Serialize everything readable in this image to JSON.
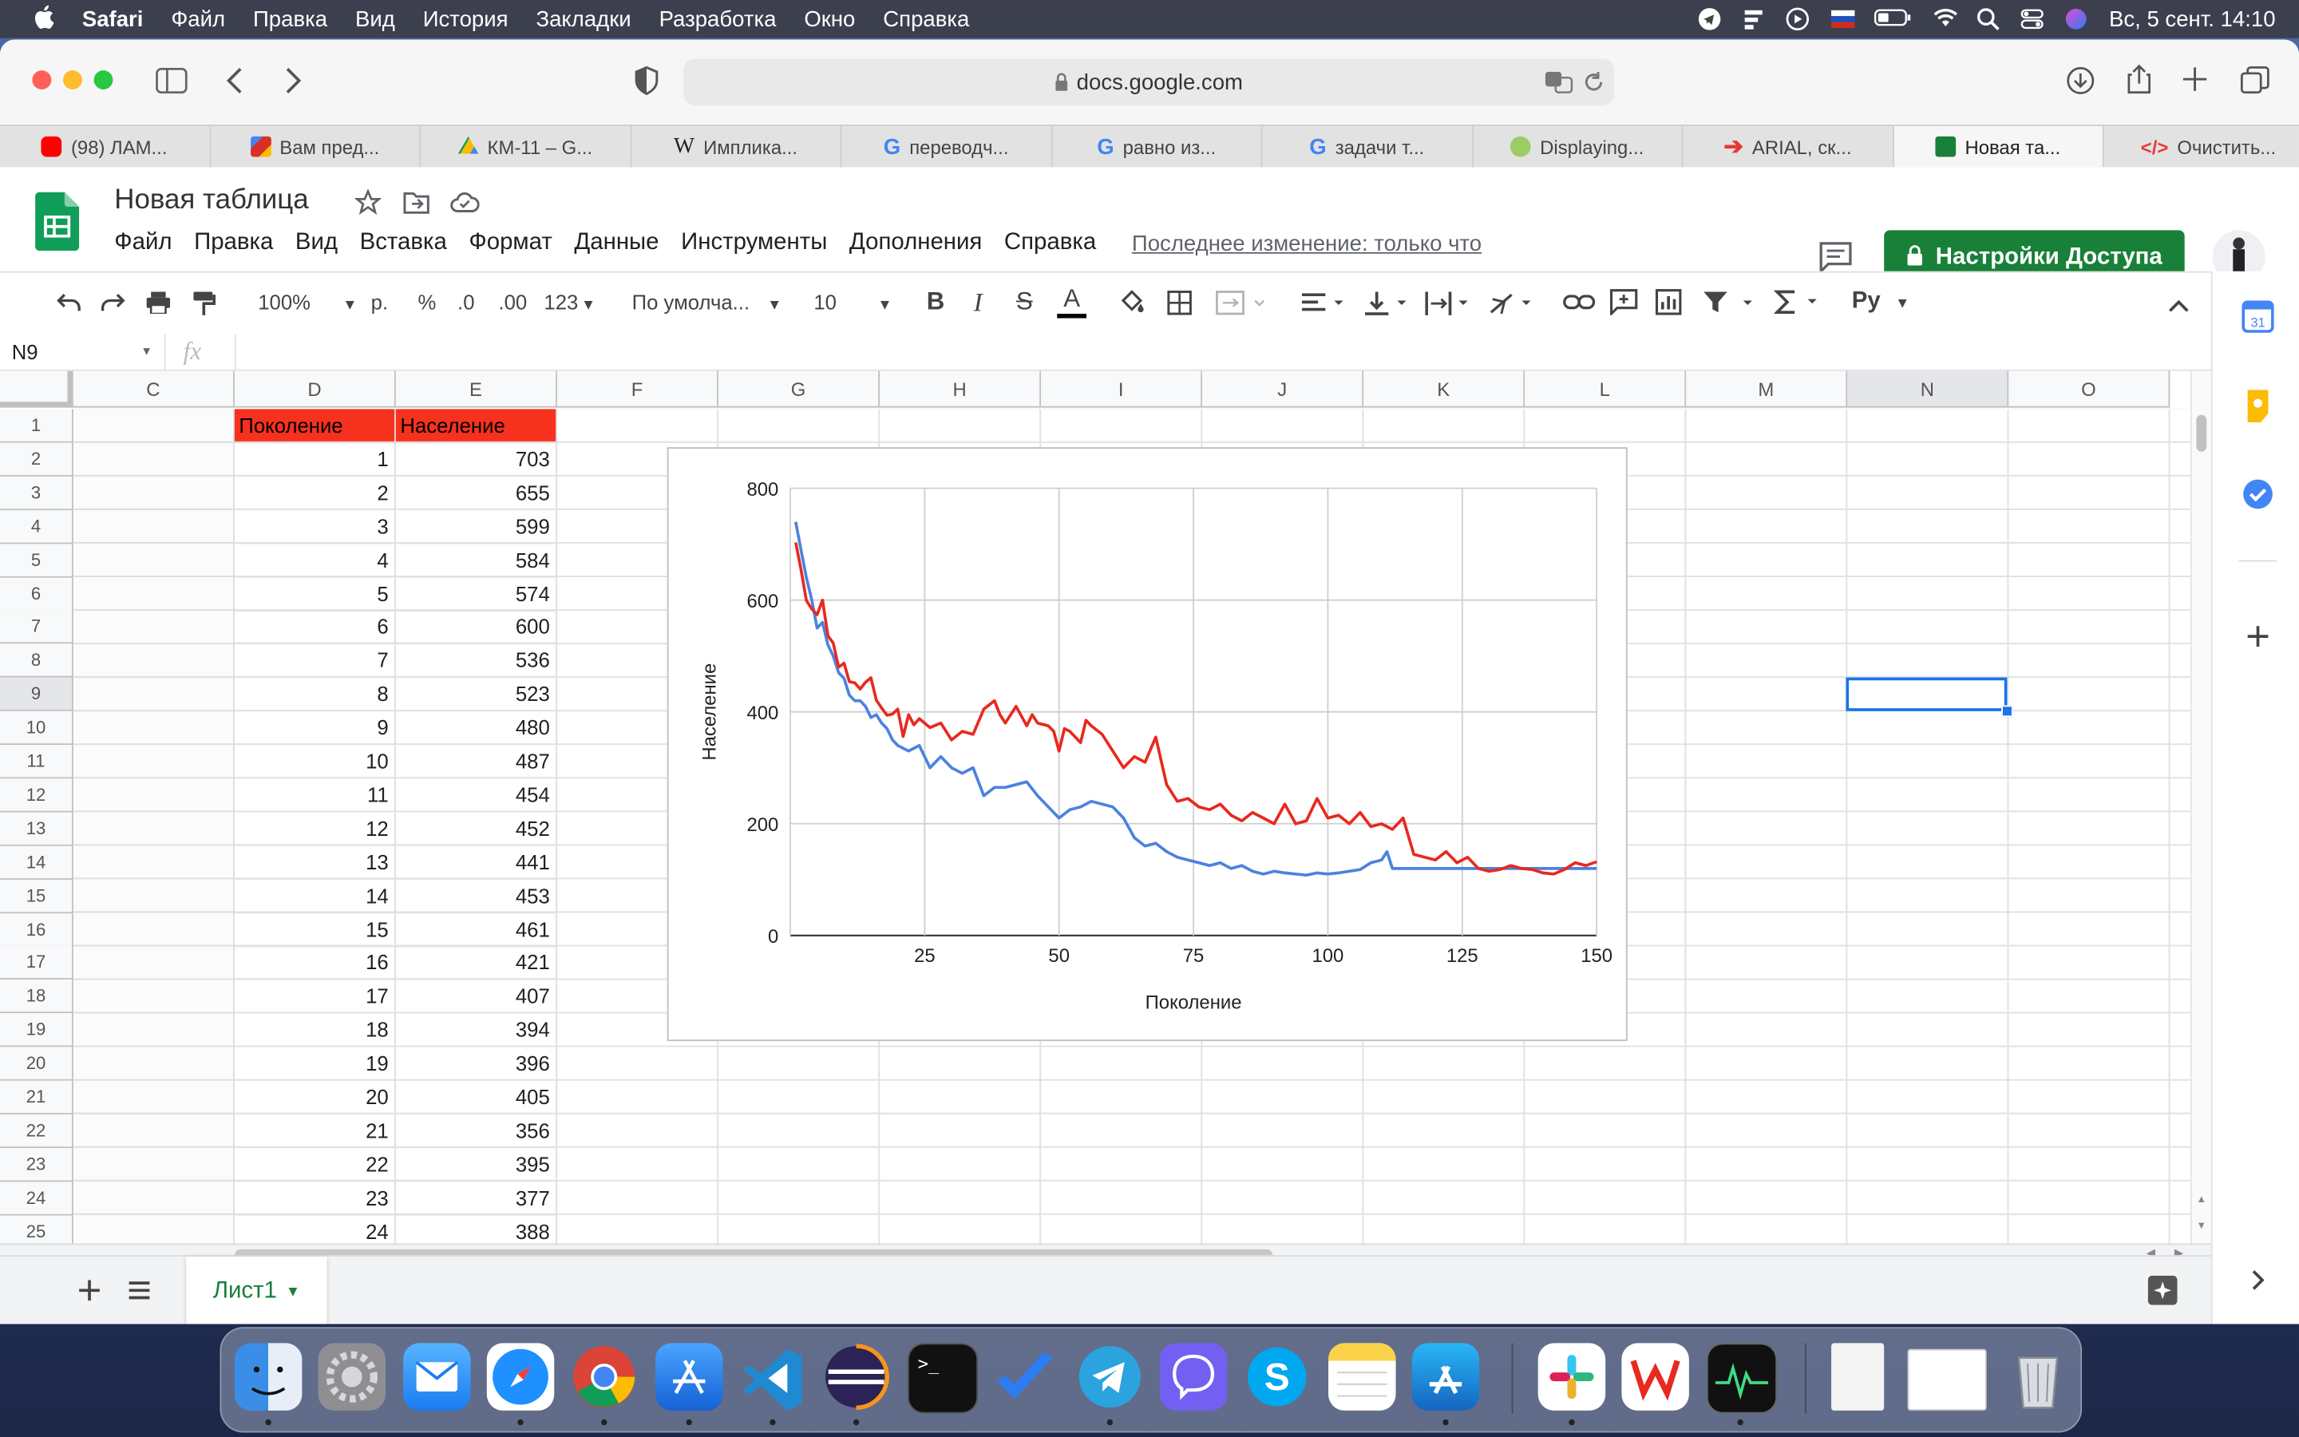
{
  "menubar": {
    "apple": "",
    "app": "Safari",
    "items": [
      "Файл",
      "Правка",
      "Вид",
      "История",
      "Закладки",
      "Разработка",
      "Окно",
      "Справка"
    ],
    "clock": "Вс, 5 сент.  14:10"
  },
  "browser": {
    "address": "docs.google.com",
    "tabs": [
      {
        "label": "(98) ЛАМ...",
        "icon": "youtube-icon",
        "color": "#ff0000"
      },
      {
        "label": "Вам пред...",
        "icon": "gmail-icon",
        "color": "#d93025"
      },
      {
        "label": "КМ-11 – G...",
        "icon": "drive-icon",
        "color": "#0f9d58"
      },
      {
        "label": "Имплика...",
        "icon": "wikipedia-icon",
        "color": "#333333"
      },
      {
        "label": "переводч...",
        "icon": "google-icon",
        "color": "#4285f4"
      },
      {
        "label": "равно из...",
        "icon": "google-icon",
        "color": "#4285f4"
      },
      {
        "label": "задачи т...",
        "icon": "google-icon",
        "color": "#4285f4"
      },
      {
        "label": "Displaying...",
        "icon": "android-icon",
        "color": "#7cb342"
      },
      {
        "label": "ARIAL, ск...",
        "icon": "arrow-icon",
        "color": "#e53935"
      },
      {
        "label": "Новая та...",
        "icon": "sheets-icon",
        "color": "#188038"
      },
      {
        "label": "Очистить...",
        "icon": "code-icon",
        "color": "#e53935"
      }
    ]
  },
  "doc": {
    "title": "Новая таблица",
    "menu": [
      "Файл",
      "Правка",
      "Вид",
      "Вставка",
      "Формат",
      "Данные",
      "Инструменты",
      "Дополнения",
      "Справка"
    ],
    "last_edit": "Последнее изменение: только что",
    "share_label": "Настройки Доступа"
  },
  "format_toolbar": {
    "zoom": "100%",
    "currency": "р.",
    "percent": "%",
    "dec_less": ".0",
    "dec_more": ".00",
    "number_format": "123",
    "font": "По умолча...",
    "font_size": "10",
    "bold": "B",
    "italic": "I",
    "strike": "S",
    "text_color": "A",
    "script": "Py"
  },
  "formula_bar": {
    "cell_ref": "N9",
    "fx": "fx"
  },
  "columns": [
    "C",
    "D",
    "E",
    "F",
    "G",
    "H",
    "I",
    "J",
    "K",
    "L",
    "M",
    "N",
    "O"
  ],
  "rows": [
    "1",
    "2",
    "3",
    "4",
    "5",
    "6",
    "7",
    "8",
    "9",
    "10",
    "11",
    "12",
    "13",
    "14",
    "15",
    "16",
    "17",
    "18",
    "19",
    "20",
    "21",
    "22",
    "23",
    "24",
    "25"
  ],
  "table": {
    "headers": [
      "Поколение",
      "Население"
    ],
    "generation": [
      "1",
      "2",
      "3",
      "4",
      "5",
      "6",
      "7",
      "8",
      "9",
      "10",
      "11",
      "12",
      "13",
      "14",
      "15",
      "16",
      "17",
      "18",
      "19",
      "20",
      "21",
      "22",
      "23",
      "24"
    ],
    "population": [
      "703",
      "655",
      "599",
      "584",
      "574",
      "600",
      "536",
      "523",
      "480",
      "487",
      "454",
      "452",
      "441",
      "453",
      "461",
      "421",
      "407",
      "394",
      "396",
      "405",
      "356",
      "395",
      "377",
      "388"
    ]
  },
  "chart_data": {
    "type": "line",
    "xlabel": "Поколение",
    "ylabel": "Население",
    "xlim": [
      0,
      150
    ],
    "ylim": [
      0,
      800
    ],
    "xticks": [
      "25",
      "50",
      "75",
      "100",
      "125",
      "150"
    ],
    "yticks": [
      "0",
      "200",
      "400",
      "600",
      "800"
    ],
    "grid": true,
    "series": [
      {
        "color": "#e8291f",
        "x": [
          1,
          2,
          3,
          4,
          5,
          6,
          7,
          8,
          9,
          10,
          11,
          12,
          13,
          14,
          15,
          16,
          17,
          18,
          19,
          20,
          21,
          22,
          23,
          24,
          26,
          28,
          30,
          32,
          34,
          36,
          38,
          39,
          40,
          42,
          44,
          45,
          46,
          48,
          49,
          50,
          51,
          52,
          54,
          55,
          56,
          58,
          60,
          62,
          64,
          66,
          68,
          70,
          72,
          74,
          76,
          78,
          80,
          82,
          84,
          86,
          88,
          90,
          92,
          94,
          96,
          98,
          100,
          102,
          104,
          106,
          108,
          110,
          112,
          114,
          116,
          118,
          120,
          122,
          124,
          126,
          128,
          130,
          132,
          134,
          136,
          138,
          140,
          142,
          144,
          146,
          148,
          150
        ],
        "y": [
          703,
          655,
          599,
          584,
          574,
          600,
          536,
          523,
          480,
          487,
          454,
          452,
          441,
          453,
          461,
          421,
          407,
          394,
          396,
          405,
          356,
          395,
          377,
          388,
          372,
          380,
          350,
          365,
          360,
          405,
          420,
          395,
          380,
          410,
          375,
          395,
          380,
          375,
          365,
          330,
          370,
          365,
          345,
          385,
          375,
          360,
          330,
          300,
          320,
          310,
          355,
          270,
          240,
          245,
          230,
          225,
          235,
          215,
          205,
          220,
          210,
          200,
          235,
          200,
          205,
          245,
          210,
          215,
          200,
          220,
          195,
          200,
          190,
          210,
          145,
          140,
          135,
          150,
          130,
          140,
          120,
          115,
          118,
          125,
          120,
          118,
          112,
          110,
          118,
          130,
          125,
          132
        ]
      },
      {
        "color": "#4c82e0",
        "x": [
          1,
          2,
          3,
          4,
          5,
          6,
          7,
          8,
          9,
          10,
          11,
          12,
          13,
          14,
          15,
          16,
          17,
          18,
          19,
          20,
          22,
          24,
          26,
          28,
          30,
          32,
          34,
          36,
          38,
          40,
          42,
          44,
          46,
          48,
          50,
          52,
          54,
          56,
          58,
          60,
          62,
          64,
          66,
          68,
          70,
          72,
          74,
          76,
          78,
          80,
          82,
          84,
          86,
          88,
          90,
          92,
          94,
          96,
          98,
          100,
          102,
          104,
          106,
          108,
          110,
          111,
          112,
          114,
          116,
          118,
          120,
          125,
          130,
          140,
          150
        ],
        "y": [
          740,
          690,
          640,
          600,
          550,
          560,
          520,
          500,
          470,
          460,
          430,
          420,
          420,
          410,
          390,
          395,
          380,
          370,
          350,
          340,
          330,
          340,
          300,
          320,
          300,
          290,
          300,
          250,
          265,
          265,
          270,
          275,
          250,
          230,
          210,
          225,
          230,
          240,
          235,
          230,
          210,
          175,
          160,
          165,
          150,
          140,
          135,
          130,
          125,
          130,
          120,
          125,
          115,
          110,
          115,
          112,
          110,
          108,
          112,
          110,
          112,
          115,
          118,
          130,
          135,
          150,
          120,
          120,
          120,
          120,
          120,
          120,
          120,
          120,
          120
        ]
      }
    ]
  },
  "sheet": {
    "tab_label": "Лист1"
  }
}
